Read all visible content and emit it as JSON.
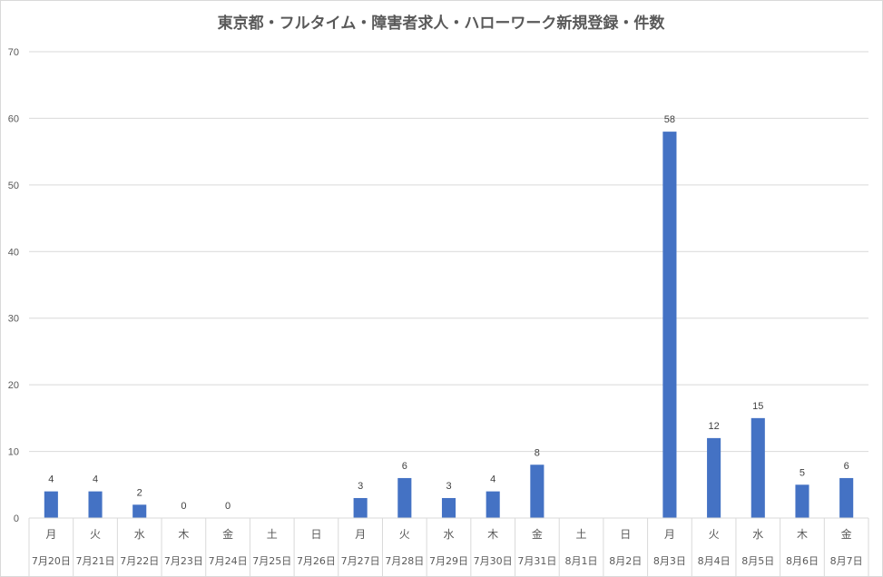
{
  "chart_data": {
    "type": "bar",
    "title": "東京都・フルタイム・障害者求人・ハローワーク新規登録・件数",
    "xlabel": "",
    "ylabel": "",
    "ylim": [
      0,
      70
    ],
    "yticks": [
      "0",
      "10",
      "20",
      "30",
      "40",
      "50",
      "60",
      "70"
    ],
    "grid": true,
    "legend": "none",
    "bar_color": "#4472c4",
    "categories": [
      {
        "day": "月",
        "date": "7月20日"
      },
      {
        "day": "火",
        "date": "7月21日"
      },
      {
        "day": "水",
        "date": "7月22日"
      },
      {
        "day": "木",
        "date": "7月23日"
      },
      {
        "day": "金",
        "date": "7月24日"
      },
      {
        "day": "土",
        "date": "7月25日"
      },
      {
        "day": "日",
        "date": "7月26日"
      },
      {
        "day": "月",
        "date": "7月27日"
      },
      {
        "day": "火",
        "date": "7月28日"
      },
      {
        "day": "水",
        "date": "7月29日"
      },
      {
        "day": "木",
        "date": "7月30日"
      },
      {
        "day": "金",
        "date": "7月31日"
      },
      {
        "day": "土",
        "date": "8月1日"
      },
      {
        "day": "日",
        "date": "8月2日"
      },
      {
        "day": "月",
        "date": "8月3日"
      },
      {
        "day": "火",
        "date": "8月4日"
      },
      {
        "day": "水",
        "date": "8月5日"
      },
      {
        "day": "木",
        "date": "8月6日"
      },
      {
        "day": "金",
        "date": "8月7日"
      }
    ],
    "values": [
      4,
      4,
      2,
      0,
      0,
      null,
      null,
      3,
      6,
      3,
      4,
      8,
      null,
      null,
      58,
      12,
      15,
      5,
      6
    ],
    "data_labels": [
      "4",
      "4",
      "2",
      "0",
      "0",
      "",
      "",
      "3",
      "6",
      "3",
      "4",
      "8",
      "",
      "",
      "58",
      "12",
      "15",
      "5",
      "6"
    ]
  }
}
